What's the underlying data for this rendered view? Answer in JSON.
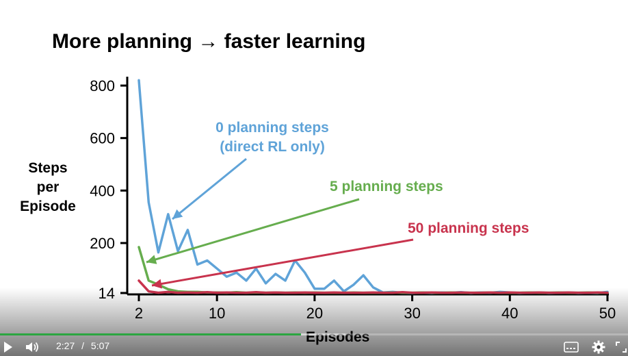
{
  "slide": {
    "title": "More planning → faster learning"
  },
  "chart_data": {
    "type": "line",
    "title": "More planning → faster learning",
    "xlabel": "Episodes",
    "ylabel": [
      "Steps",
      "per",
      "Episode"
    ],
    "xlim": [
      2,
      50
    ],
    "ylim": [
      14,
      800
    ],
    "xticks": [
      2,
      10,
      20,
      30,
      40,
      50
    ],
    "yticks": [
      14,
      200,
      400,
      600,
      800
    ],
    "grid": false,
    "series": [
      {
        "name": "0 planning steps (direct RL only)",
        "color": "#5fa3d8",
        "x": [
          2,
          3,
          4,
          5,
          6,
          7,
          8,
          9,
          10,
          11,
          12,
          13,
          14,
          15,
          16,
          17,
          18,
          19,
          20,
          21,
          22,
          23,
          24,
          25,
          26,
          27,
          28,
          29,
          30,
          31,
          32,
          33,
          34,
          35,
          36,
          37,
          38,
          39,
          40,
          41,
          42,
          43,
          44,
          45,
          46,
          47,
          48,
          49,
          50
        ],
        "values": [
          820,
          355,
          165,
          310,
          170,
          250,
          120,
          135,
          105,
          75,
          90,
          60,
          105,
          50,
          85,
          60,
          135,
          90,
          30,
          30,
          60,
          20,
          45,
          80,
          35,
          16,
          18,
          15,
          14,
          16,
          14,
          16,
          15,
          17,
          14,
          16,
          15,
          18,
          16,
          14,
          15,
          16,
          14,
          15,
          16,
          14,
          15,
          14,
          18
        ]
      },
      {
        "name": "5 planning steps",
        "color": "#66ad4e",
        "x": [
          2,
          3,
          4,
          5,
          6,
          7,
          8,
          9,
          10,
          11,
          12,
          13,
          14,
          15,
          16,
          17,
          18,
          19,
          20,
          21,
          22,
          23,
          24,
          25,
          26,
          27,
          28,
          29,
          30,
          31,
          32,
          33,
          34,
          35,
          36,
          37,
          38,
          39,
          40,
          41,
          42,
          43,
          44,
          45,
          46,
          47,
          48,
          49,
          50
        ],
        "values": [
          185,
          60,
          45,
          28,
          20,
          18,
          18,
          16,
          16,
          15,
          17,
          15,
          16,
          15,
          16,
          15,
          16,
          15,
          16,
          15,
          15,
          15,
          16,
          15,
          15,
          15,
          16,
          15,
          15,
          16,
          15,
          15,
          16,
          15,
          15,
          15,
          16,
          15,
          15,
          15,
          16,
          15,
          15,
          16,
          15,
          15,
          16,
          15,
          15
        ]
      },
      {
        "name": "50 planning steps",
        "color": "#c8334d",
        "x": [
          2,
          3,
          4,
          5,
          6,
          7,
          8,
          9,
          10,
          11,
          12,
          13,
          14,
          15,
          16,
          17,
          18,
          19,
          20,
          21,
          22,
          23,
          24,
          25,
          26,
          27,
          28,
          29,
          30,
          31,
          32,
          33,
          34,
          35,
          36,
          37,
          38,
          39,
          40,
          41,
          42,
          43,
          44,
          45,
          46,
          47,
          48,
          49,
          50
        ],
        "values": [
          60,
          20,
          15,
          18,
          15,
          16,
          15,
          17,
          15,
          16,
          15,
          15,
          17,
          15,
          16,
          15,
          15,
          16,
          15,
          15,
          16,
          15,
          15,
          15,
          16,
          15,
          15,
          17,
          15,
          15,
          16,
          15,
          15,
          16,
          15,
          15,
          16,
          15,
          16,
          15,
          15,
          16,
          15,
          15,
          16,
          15,
          15,
          16,
          15
        ]
      }
    ],
    "annotations": [
      {
        "lines": [
          "0 planning steps",
          "(direct RL only)"
        ],
        "color": "#5fa3d8"
      },
      {
        "lines": [
          "5 planning steps"
        ],
        "color": "#66ad4e"
      },
      {
        "lines": [
          "50 planning steps"
        ],
        "color": "#c8334d"
      }
    ]
  },
  "player": {
    "current_time": "2:27",
    "separator": "/",
    "duration": "5:07",
    "played_fraction": 0.479,
    "buffered_fraction": 0.55,
    "accent_color": "#2ba640",
    "icons": {
      "play": "play-icon",
      "volume": "volume-icon",
      "captions": "captions-icon",
      "settings": "gear-icon",
      "fullscreen": "fullscreen-icon"
    }
  }
}
